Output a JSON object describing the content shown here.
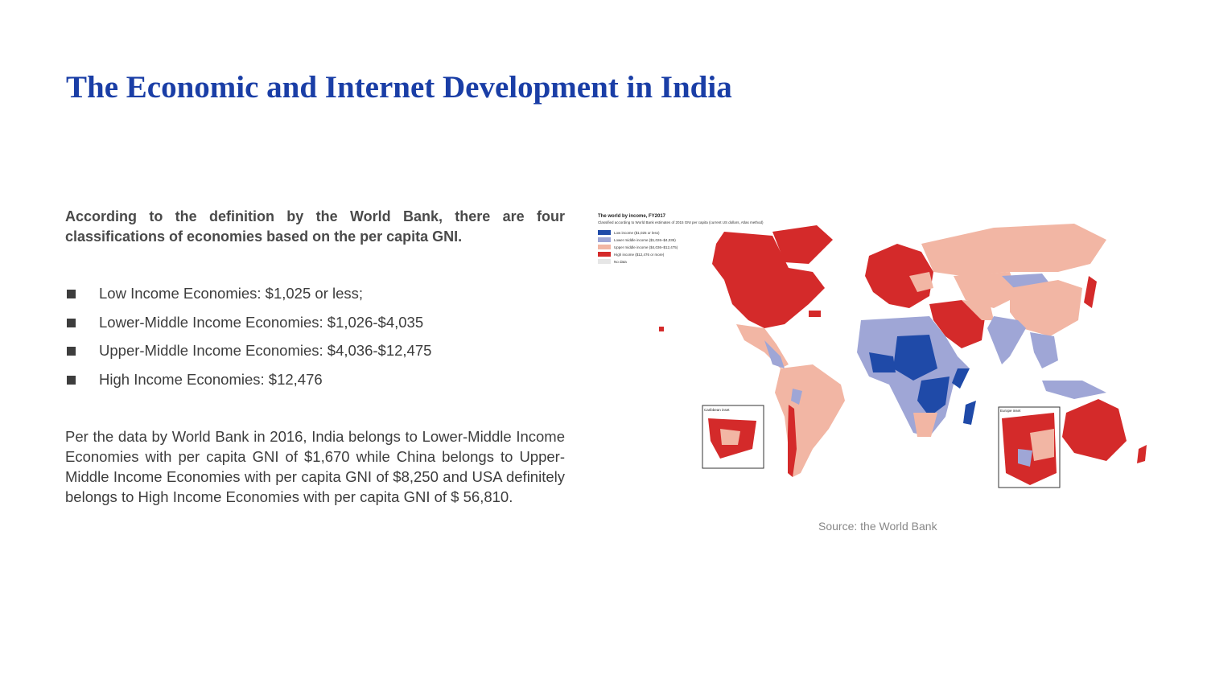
{
  "slide": {
    "title": "The Economic and Internet Development in India",
    "intro": "According to the definition by the World Bank, there are four classifications of economies based on the per capita GNI.",
    "bullets": [
      "Low Income Economies: $1,025 or less;",
      "Lower-Middle Income Economies: $1,026-$4,035",
      "Upper-Middle Income Economies: $4,036-$12,475",
      "High Income Economies: $12,476"
    ],
    "body": "Per the data by World Bank in 2016, India belongs to Lower-Middle Income Economies with per capita GNI of $1,670 while China belongs to Upper-Middle Income Economies with per capita GNI of $8,250 and USA  definitely belongs to High Income Economies with per capita GNI of $ 56,810.",
    "map": {
      "title": "The world by income, FY2017",
      "subtitle": "Classified according to World Bank estimates of 2015 GNI per capita (current US dollars, Atlas method)",
      "legend": [
        {
          "label": "Low income ($1,025 or less)",
          "color": "#1f4aa8"
        },
        {
          "label": "Lower middle income ($1,026–$4,035)",
          "color": "#9fa6d6"
        },
        {
          "label": "Upper middle income ($4,036–$12,475)",
          "color": "#f2b6a4"
        },
        {
          "label": "High income ($12,476 or more)",
          "color": "#d42a2a"
        },
        {
          "label": "No data",
          "color": "#e6e6e6"
        }
      ],
      "insets": [
        "Caribbean inset",
        "Europe inset"
      ],
      "source": "Source: the World Bank"
    }
  }
}
